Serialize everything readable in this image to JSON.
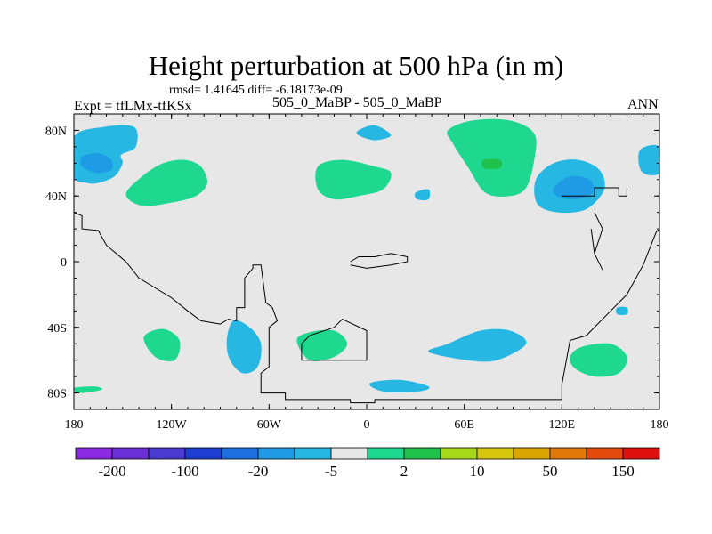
{
  "chart_data": {
    "type": "heatmap",
    "title": "Height perturbation at 500 hPa (in m)",
    "stats_text": "rmsd= 1.41645 diff= -6.18173e-09",
    "left_label": "Expt = tfLMx-tfKSx",
    "center_label": "505_0_MaBP - 505_0_MaBP",
    "right_label": "ANN",
    "xlim": [
      -180,
      180
    ],
    "ylim": [
      -90,
      90
    ],
    "x_ticks": [
      {
        "value": -180,
        "label": "180"
      },
      {
        "value": -120,
        "label": "120W"
      },
      {
        "value": -60,
        "label": "60W"
      },
      {
        "value": 0,
        "label": "0"
      },
      {
        "value": 60,
        "label": "60E"
      },
      {
        "value": 120,
        "label": "120E"
      },
      {
        "value": 180,
        "label": "180"
      }
    ],
    "y_ticks": [
      {
        "value": 80,
        "label": "80N"
      },
      {
        "value": 40,
        "label": "40N"
      },
      {
        "value": 0,
        "label": "0"
      },
      {
        "value": -40,
        "label": "40S"
      },
      {
        "value": -80,
        "label": "80S"
      }
    ],
    "colorbar": {
      "colors": [
        "#8a2be2",
        "#6a2fd6",
        "#4b3bd1",
        "#1e3fd2",
        "#1e6fe0",
        "#1f9be6",
        "#27b7e3",
        "#e7e7e7",
        "#1fd890",
        "#20c14a",
        "#a8d81a",
        "#d7c60e",
        "#dba500",
        "#e27a0a",
        "#e34a0c",
        "#e01010"
      ],
      "labels": [
        {
          "after_box": 1,
          "text": "-200"
        },
        {
          "after_box": 3,
          "text": "-100"
        },
        {
          "after_box": 5,
          "text": "-20"
        },
        {
          "after_box": 7,
          "text": "-5"
        },
        {
          "after_box": 9,
          "text": "2"
        },
        {
          "after_box": 11,
          "text": "10"
        },
        {
          "after_box": 13,
          "text": "50"
        },
        {
          "after_box": 15,
          "text": "150"
        }
      ]
    },
    "background_color": "#e7e7e7",
    "anomalies": [
      {
        "name": "north-pacific-blue",
        "color": "#27b7e3",
        "rim": [
          [
            -180,
            76
          ],
          [
            -162,
            82
          ],
          [
            -143,
            82
          ],
          [
            -142,
            70
          ],
          [
            -151,
            65
          ],
          [
            -150,
            60
          ],
          [
            -155,
            52
          ],
          [
            -165,
            48
          ],
          [
            -172,
            48
          ],
          [
            -180,
            52
          ]
        ]
      },
      {
        "name": "north-pacific-blue-core",
        "color": "#1f9be6",
        "rim": [
          [
            -175,
            64
          ],
          [
            -165,
            66
          ],
          [
            -157,
            62
          ],
          [
            -157,
            56
          ],
          [
            -166,
            54
          ],
          [
            -175,
            58
          ]
        ]
      },
      {
        "name": "north-america-green",
        "color": "#1fd890",
        "rim": [
          [
            -148,
            41
          ],
          [
            -138,
            52
          ],
          [
            -125,
            60
          ],
          [
            -112,
            62
          ],
          [
            -102,
            58
          ],
          [
            -98,
            48
          ],
          [
            -105,
            40
          ],
          [
            -120,
            36
          ],
          [
            -138,
            34
          ]
        ]
      },
      {
        "name": "north-atlantic-green",
        "color": "#1fd890",
        "rim": [
          [
            -30,
            58
          ],
          [
            -15,
            62
          ],
          [
            5,
            58
          ],
          [
            15,
            54
          ],
          [
            10,
            44
          ],
          [
            -5,
            40
          ],
          [
            -20,
            38
          ],
          [
            -30,
            44
          ]
        ]
      },
      {
        "name": "north-atlantic-blue",
        "color": "#27b7e3",
        "rim": [
          [
            -5,
            80
          ],
          [
            5,
            83
          ],
          [
            15,
            77
          ],
          [
            5,
            74
          ],
          [
            -5,
            77
          ]
        ]
      },
      {
        "name": "small-blue-40n",
        "color": "#27b7e3",
        "rim": [
          [
            30,
            42
          ],
          [
            38,
            44
          ],
          [
            38,
            38
          ],
          [
            31,
            38
          ]
        ]
      },
      {
        "name": "siberia-green",
        "color": "#1fd890",
        "rim": [
          [
            50,
            80
          ],
          [
            65,
            86
          ],
          [
            88,
            86
          ],
          [
            103,
            78
          ],
          [
            103,
            62
          ],
          [
            98,
            45
          ],
          [
            88,
            40
          ],
          [
            73,
            42
          ],
          [
            62,
            58
          ],
          [
            53,
            72
          ]
        ]
      },
      {
        "name": "siberia-green-core",
        "color": "#20c14a",
        "rim": [
          [
            72,
            62
          ],
          [
            82,
            62
          ],
          [
            82,
            57
          ],
          [
            72,
            57
          ]
        ]
      },
      {
        "name": "east-asia-blue",
        "color": "#27b7e3",
        "rim": [
          [
            104,
            50
          ],
          [
            115,
            60
          ],
          [
            130,
            62
          ],
          [
            143,
            56
          ],
          [
            146,
            44
          ],
          [
            135,
            32
          ],
          [
            118,
            30
          ],
          [
            105,
            35
          ]
        ]
      },
      {
        "name": "east-asia-blue-core",
        "color": "#1f9be6",
        "rim": [
          [
            115,
            45
          ],
          [
            125,
            52
          ],
          [
            137,
            50
          ],
          [
            139,
            42
          ],
          [
            128,
            38
          ],
          [
            117,
            40
          ]
        ]
      },
      {
        "name": "north-pacific-east-blue",
        "color": "#27b7e3",
        "rim": [
          [
            168,
            68
          ],
          [
            180,
            70
          ],
          [
            180,
            54
          ],
          [
            169,
            55
          ]
        ]
      },
      {
        "name": "south-pacific-green",
        "color": "#1fd890",
        "rim": [
          [
            -137,
            -46
          ],
          [
            -125,
            -41
          ],
          [
            -115,
            -48
          ],
          [
            -118,
            -60
          ],
          [
            -130,
            -58
          ]
        ]
      },
      {
        "name": "south-america-blue",
        "color": "#27b7e3",
        "rim": [
          [
            -82,
            -36
          ],
          [
            -72,
            -40
          ],
          [
            -65,
            -50
          ],
          [
            -67,
            -64
          ],
          [
            -76,
            -68
          ],
          [
            -84,
            -60
          ],
          [
            -86,
            -48
          ]
        ]
      },
      {
        "name": "south-atlantic-green",
        "color": "#1fd890",
        "rim": [
          [
            -43,
            -48
          ],
          [
            -35,
            -43
          ],
          [
            -20,
            -42
          ],
          [
            -12,
            -50
          ],
          [
            -20,
            -58
          ],
          [
            -35,
            -60
          ]
        ]
      },
      {
        "name": "indian-ocean-blue",
        "color": "#27b7e3",
        "rim": [
          [
            38,
            -55
          ],
          [
            50,
            -50
          ],
          [
            70,
            -42
          ],
          [
            88,
            -42
          ],
          [
            98,
            -50
          ],
          [
            80,
            -60
          ],
          [
            62,
            -60
          ]
        ]
      },
      {
        "name": "australia-south-green",
        "color": "#1fd890",
        "rim": [
          [
            125,
            -58
          ],
          [
            132,
            -52
          ],
          [
            150,
            -50
          ],
          [
            160,
            -58
          ],
          [
            155,
            -68
          ],
          [
            140,
            -70
          ],
          [
            128,
            -65
          ]
        ]
      },
      {
        "name": "small-blue-30s",
        "color": "#27b7e3",
        "rim": [
          [
            154,
            -28
          ],
          [
            160,
            -28
          ],
          [
            160,
            -32
          ],
          [
            154,
            -32
          ]
        ]
      },
      {
        "name": "south-atlantic-blue-strip",
        "color": "#27b7e3",
        "rim": [
          [
            2,
            -74
          ],
          [
            20,
            -72
          ],
          [
            38,
            -76
          ],
          [
            32,
            -79
          ],
          [
            10,
            -79
          ]
        ]
      },
      {
        "name": "antarctic-green",
        "color": "#1fd890",
        "rim": [
          [
            -180,
            -77
          ],
          [
            -167,
            -76
          ],
          [
            -163,
            -78
          ],
          [
            -176,
            -80
          ]
        ]
      }
    ],
    "coastlines": [
      {
        "name": "west-coast-line",
        "points": [
          [
            -180,
            30
          ],
          [
            -175,
            28
          ],
          [
            -175,
            20
          ],
          [
            -165,
            19
          ],
          [
            -160,
            10
          ],
          [
            -148,
            0
          ],
          [
            -140,
            -10
          ],
          [
            -130,
            -16
          ],
          [
            -120,
            -22
          ],
          [
            -110,
            -30
          ],
          [
            -102,
            -36
          ],
          [
            -90,
            -38
          ],
          [
            -85,
            -35
          ],
          [
            -80,
            -36
          ],
          [
            -80,
            -28
          ],
          [
            -75,
            -28
          ],
          [
            -75,
            -10
          ],
          [
            -70,
            -4
          ],
          [
            -70,
            -2
          ],
          [
            -65,
            -2
          ],
          [
            -62,
            -25
          ],
          [
            -58,
            -28
          ],
          [
            -55,
            -36
          ],
          [
            -60,
            -40
          ],
          [
            -60,
            -64
          ],
          [
            -65,
            -68
          ],
          [
            -65,
            -80
          ],
          [
            -50,
            -80
          ],
          [
            -50,
            -84
          ],
          [
            -10,
            -84
          ],
          [
            -10,
            -86
          ],
          [
            5,
            -86
          ],
          [
            5,
            -84
          ],
          [
            120,
            -84
          ],
          [
            120,
            -75
          ]
        ]
      },
      {
        "name": "africa-outline",
        "points": [
          [
            -40,
            -50
          ],
          [
            -35,
            -45
          ],
          [
            -20,
            -40
          ],
          [
            -15,
            -35
          ],
          [
            0,
            -42
          ],
          [
            0,
            -60
          ],
          [
            -20,
            -60
          ],
          [
            -40,
            -60
          ],
          [
            -40,
            -50
          ]
        ]
      },
      {
        "name": "equatorial-island",
        "points": [
          [
            -10,
            -2
          ],
          [
            0,
            -4
          ],
          [
            15,
            -2
          ],
          [
            25,
            0
          ],
          [
            25,
            3
          ],
          [
            15,
            5
          ],
          [
            5,
            3
          ],
          [
            -5,
            3
          ],
          [
            -10,
            0
          ]
        ]
      },
      {
        "name": "australia-coast",
        "points": [
          [
            120,
            -75
          ],
          [
            125,
            -48
          ],
          [
            135,
            -45
          ],
          [
            150,
            -30
          ],
          [
            160,
            -20
          ],
          [
            170,
            -2
          ],
          [
            178,
            18
          ],
          [
            180,
            20
          ]
        ]
      },
      {
        "name": "pacific-island-chain",
        "points": [
          [
            140,
            30
          ],
          [
            145,
            20
          ],
          [
            140,
            5
          ],
          [
            145,
            -5
          ],
          [
            140,
            5
          ],
          [
            138,
            20
          ]
        ]
      },
      {
        "name": "asia-inlet",
        "points": [
          [
            120,
            40
          ],
          [
            140,
            40
          ],
          [
            140,
            45
          ],
          [
            155,
            45
          ],
          [
            155,
            40
          ],
          [
            160,
            40
          ],
          [
            160,
            45
          ]
        ]
      }
    ]
  }
}
